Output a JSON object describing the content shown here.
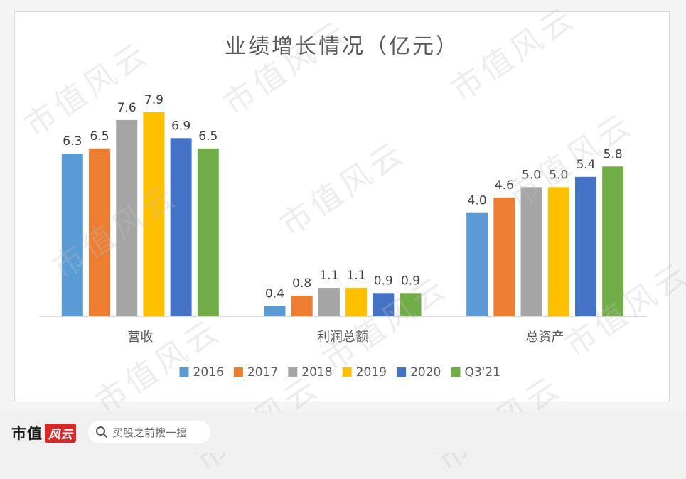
{
  "chart_data": {
    "type": "bar",
    "title": "业绩增长情况（亿元）",
    "categories": [
      "营收",
      "利润总额",
      "总资产"
    ],
    "series": [
      {
        "name": "2016",
        "color": "#5b9bd5",
        "values": [
          6.3,
          0.4,
          4.0
        ]
      },
      {
        "name": "2017",
        "color": "#ed7d31",
        "values": [
          6.5,
          0.8,
          4.6
        ]
      },
      {
        "name": "2018",
        "color": "#a5a5a5",
        "values": [
          7.6,
          1.1,
          5.0
        ]
      },
      {
        "name": "2019",
        "color": "#ffc000",
        "values": [
          7.9,
          1.1,
          5.0
        ]
      },
      {
        "name": "2020",
        "color": "#4472c4",
        "values": [
          6.9,
          0.9,
          5.4
        ]
      },
      {
        "name": "Q3'21",
        "color": "#70ad47",
        "values": [
          6.5,
          0.9,
          5.8
        ]
      }
    ],
    "value_labels": [
      [
        "6.3",
        "0.4",
        "4.0"
      ],
      [
        "6.5",
        "0.8",
        "4.6"
      ],
      [
        "7.6",
        "1.1",
        "5.0"
      ],
      [
        "7.9",
        "1.1",
        "5.0"
      ],
      [
        "6.9",
        "0.9",
        "5.4"
      ],
      [
        "6.5",
        "0.9",
        "5.8"
      ]
    ],
    "xlabel": "",
    "ylabel": "",
    "ylim": [
      0,
      9
    ],
    "grid": false,
    "legend_position": "bottom"
  },
  "watermark": "市值风云",
  "footer": {
    "brand": "市值",
    "brand_logo": "风云",
    "search_placeholder": "买股之前搜一搜"
  }
}
